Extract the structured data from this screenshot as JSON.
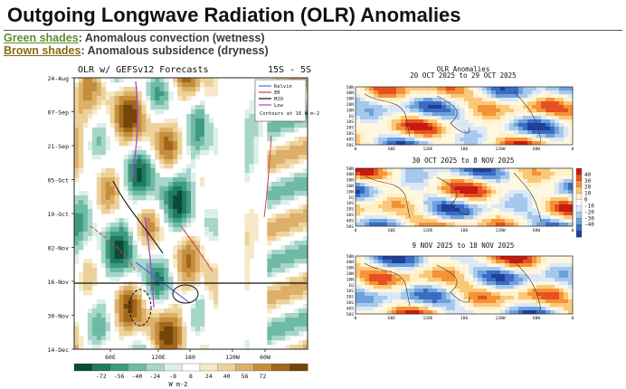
{
  "header": {
    "title": "Outgoing Longwave Radiation (OLR) Anomalies",
    "legend_green_key": "Green shades",
    "legend_green_text": ": Anomalous convection (wetness)",
    "legend_brown_key": "Brown shades",
    "legend_brown_text": ": Anomalous subsidence (dryness)"
  },
  "colors": {
    "green_key": "#5e8e2e",
    "brown_key": "#8a6a10"
  },
  "chart_data": [
    {
      "type": "heatmap",
      "title": "OLR w/ GEFSv12 Forecasts",
      "subtitle": "15S - 5S",
      "y_ticks": [
        "24-Aug",
        "07-Sep",
        "21-Sep",
        "05-Oct",
        "19-Oct",
        "02-Nov",
        "16-Nov",
        "30-Nov",
        "14-Dec"
      ],
      "x_ticks": [
        "60E",
        "120E",
        "180",
        "120W",
        "60W"
      ],
      "legend": [
        "Kelvin",
        "ER",
        "MJO",
        "Low"
      ],
      "legend_colors": [
        "#5566dd",
        "#d04040",
        "#111111",
        "#aa44cc"
      ],
      "note": "Contours at 16 W m-2",
      "forecast_start": "16-Nov",
      "colorbar_labels": [
        "-72",
        "-56",
        "-40",
        "-24",
        "-8",
        "8",
        "24",
        "40",
        "56",
        "72"
      ],
      "colorbar_unit": "W m-2",
      "colorbar_colors": [
        "#0c4a3a",
        "#1f7a5e",
        "#3d9b82",
        "#6fbaa6",
        "#a6d6c8",
        "#dcefe9",
        "#ffffff",
        "#f6e9c8",
        "#edd19a",
        "#dcb06a",
        "#c58d3c",
        "#a0681c",
        "#744508"
      ]
    },
    {
      "type": "heatmap",
      "title": "OLR Anomalies",
      "panels": [
        {
          "subtitle": "20 OCT 2025 to 29 OCT 2025"
        },
        {
          "subtitle": "30 OCT 2025 to 8 NOV 2025"
        },
        {
          "subtitle": "9 NOV 2025 to 18 NOV 2025"
        }
      ],
      "lat_ticks": [
        "50N",
        "40N",
        "30N",
        "20N",
        "10N",
        "EQ",
        "10S",
        "20S",
        "30S",
        "40S",
        "50S"
      ],
      "lon_ticks": [
        "0",
        "60E",
        "120E",
        "180",
        "120W",
        "60W",
        "0"
      ],
      "colorbar_labels": [
        "40",
        "30",
        "20",
        "10",
        "0",
        "-10",
        "-20",
        "-30",
        "-40"
      ],
      "colorbar_colors": [
        "#c81a10",
        "#e8501f",
        "#f49236",
        "#fbc878",
        "#fff0c8",
        "#ffffff",
        "#dbe9f7",
        "#a6c8ec",
        "#6ea0dc",
        "#3a6cc4",
        "#1e3f9a"
      ]
    }
  ]
}
